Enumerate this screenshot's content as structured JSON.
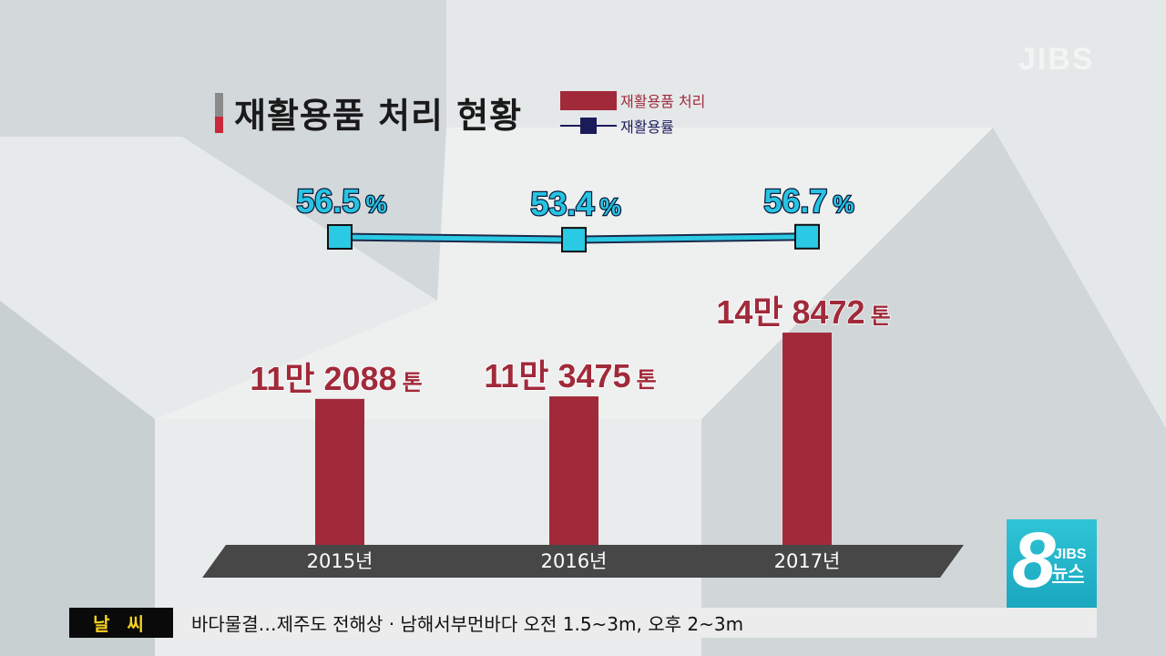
{
  "watermark": "JIBS",
  "title": "재활용품 처리 현황",
  "legend": {
    "bar_label": "재활용품 처리",
    "line_label": "재활용률"
  },
  "chart_data": {
    "type": "bar",
    "categories": [
      "2015년",
      "2016년",
      "2017년"
    ],
    "series": [
      {
        "name": "재활용품 처리",
        "type": "bar",
        "unit": "톤",
        "values": [
          112088,
          113475,
          148472
        ],
        "labels": [
          {
            "man": "11만",
            "rest": "2088",
            "unit": "톤"
          },
          {
            "man": "11만",
            "rest": "3475",
            "unit": "톤"
          },
          {
            "man": "14만",
            "rest": "8472",
            "unit": "톤"
          }
        ]
      },
      {
        "name": "재활용률",
        "type": "line",
        "unit": "%",
        "values": [
          56.5,
          53.4,
          56.7
        ],
        "labels": [
          "56.5",
          "53.4",
          "56.7"
        ]
      }
    ],
    "colors": {
      "bar": "#a12a3a",
      "line": "#2ac9e4",
      "marker_edge": "#111111",
      "rate_text": "#26c4e2",
      "value_text": "#a12a3a"
    }
  },
  "ticker": {
    "label": "날 씨",
    "text": "바다물결…제주도 전해상 · 남해서부먼바다 오전 1.5~3m, 오후 2~3m"
  },
  "logo": {
    "number": "8",
    "brand": "JIBS",
    "word": "뉴스"
  }
}
